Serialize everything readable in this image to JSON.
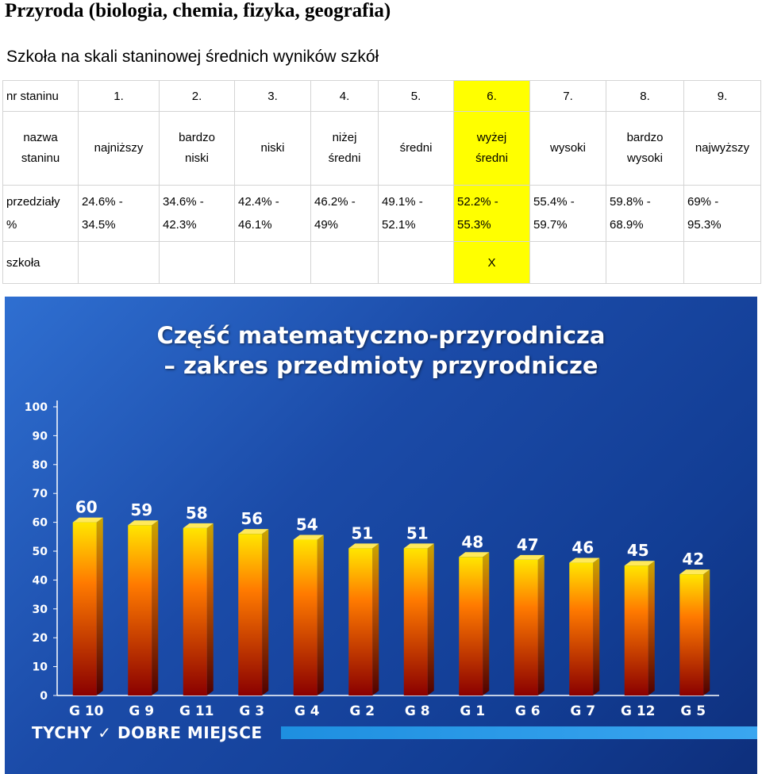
{
  "page": {
    "title": "Przyroda (biologia, chemia, fizyka, geografia)",
    "section_title": "Szkoła na skali staninowej średnich wyników szkół"
  },
  "table": {
    "highlight_color": "#ffff00",
    "highlight_column": 6,
    "row_labels": {
      "number": "nr staninu",
      "name": [
        "nazwa",
        "staninu"
      ],
      "range": [
        "przedziały",
        "%"
      ],
      "school": "szkoła"
    },
    "stanines": [
      {
        "nr": "1.",
        "name": [
          "najniższy"
        ],
        "range": [
          "24.6% -",
          "34.5%"
        ],
        "mark": ""
      },
      {
        "nr": "2.",
        "name": [
          "bardzo",
          "niski"
        ],
        "range": [
          "34.6% -",
          "42.3%"
        ],
        "mark": ""
      },
      {
        "nr": "3.",
        "name": [
          "niski"
        ],
        "range": [
          "42.4% -",
          "46.1%"
        ],
        "mark": ""
      },
      {
        "nr": "4.",
        "name": [
          "niżej",
          "średni"
        ],
        "range": [
          "46.2% -",
          "49%"
        ],
        "mark": ""
      },
      {
        "nr": "5.",
        "name": [
          "średni"
        ],
        "range": [
          "49.1% -",
          "52.1%"
        ],
        "mark": ""
      },
      {
        "nr": "6.",
        "name": [
          "wyżej",
          "średni"
        ],
        "range": [
          "52.2% -",
          "55.3%"
        ],
        "mark": "X"
      },
      {
        "nr": "7.",
        "name": [
          "wysoki"
        ],
        "range": [
          "55.4% -",
          "59.7%"
        ],
        "mark": ""
      },
      {
        "nr": "8.",
        "name": [
          "bardzo",
          "wysoki"
        ],
        "range": [
          "59.8% -",
          "68.9%"
        ],
        "mark": ""
      },
      {
        "nr": "9.",
        "name": [
          "najwyższy"
        ],
        "range": [
          "69% -",
          "95.3%"
        ],
        "mark": ""
      }
    ]
  },
  "chart_data": {
    "type": "bar",
    "title": [
      "Część matematyczno-przyrodnicza",
      "– zakres przedmioty przyrodnicze"
    ],
    "categories": [
      "G 10",
      "G 9",
      "G 11",
      "G 3",
      "G 4",
      "G 2",
      "G 8",
      "G 1",
      "G 6",
      "G 7",
      "G 12",
      "G 5"
    ],
    "values": [
      60,
      59,
      58,
      56,
      54,
      51,
      51,
      48,
      47,
      46,
      45,
      42
    ],
    "ylim": [
      0,
      100
    ],
    "yticks": [
      0,
      10,
      20,
      30,
      40,
      50,
      60,
      70,
      80,
      90,
      100
    ],
    "grid": false,
    "legend": "none",
    "bar_gradient": [
      "#ffe600",
      "#ff7a00",
      "#8a0000"
    ],
    "background": "#1b4ba8"
  },
  "footer": {
    "brand": "TYCHY ✓ DOBRE MIEJSCE"
  }
}
